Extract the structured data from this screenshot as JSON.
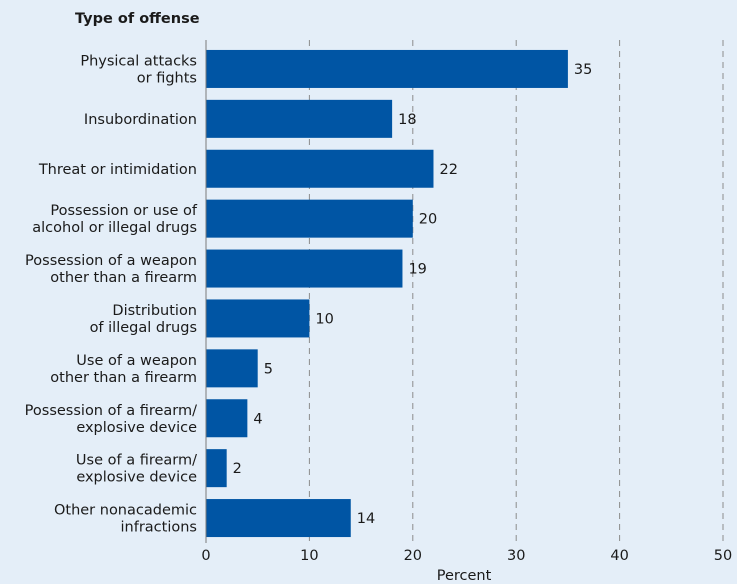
{
  "chart_data": {
    "type": "bar",
    "orientation": "horizontal",
    "title": "Type of offense",
    "xlabel": "Percent",
    "xlim": [
      0,
      50
    ],
    "xticks": [
      0,
      10,
      20,
      30,
      40,
      50
    ],
    "grid": "vertical-dashed",
    "bar_color": "#0055a4",
    "categories": [
      [
        "Physical attacks",
        "or fights"
      ],
      [
        "Insubordination"
      ],
      [
        "Threat or intimidation"
      ],
      [
        "Possession or use of",
        "alcohol or illegal drugs"
      ],
      [
        "Possession of a weapon",
        "other than a firearm"
      ],
      [
        "Distribution",
        "of illegal drugs"
      ],
      [
        "Use of a weapon",
        "other than a firearm"
      ],
      [
        "Possession of a firearm/",
        "explosive device"
      ],
      [
        "Use of a firearm/",
        "explosive device"
      ],
      [
        "Other nonacademic",
        "infractions"
      ]
    ],
    "values": [
      35,
      18,
      22,
      20,
      19,
      10,
      5,
      4,
      2,
      14
    ]
  }
}
